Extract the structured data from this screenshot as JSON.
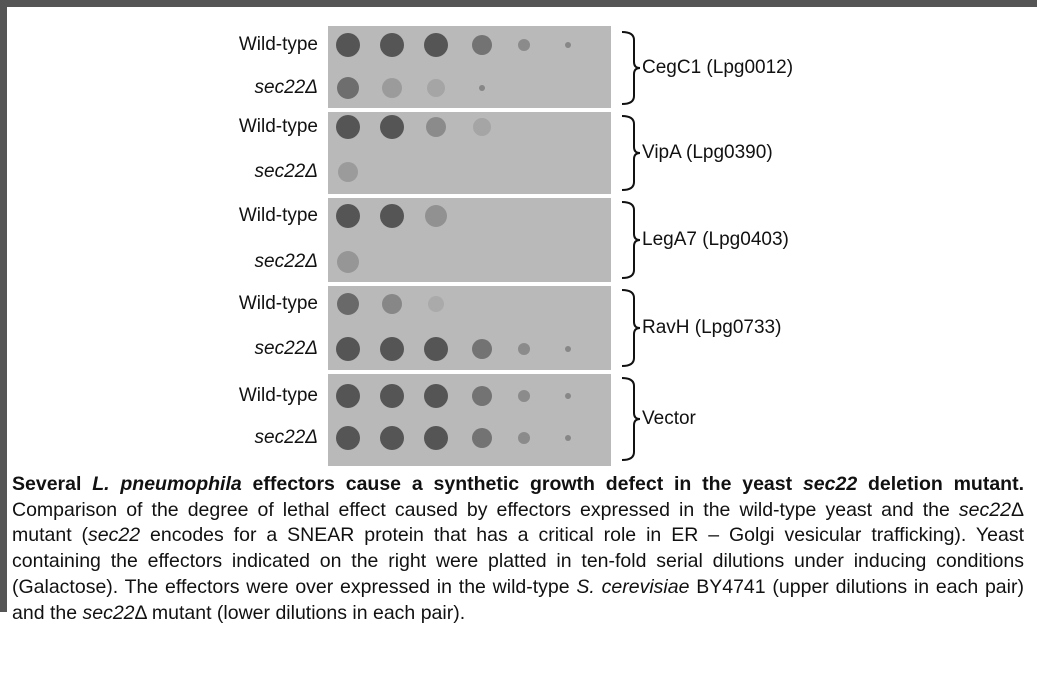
{
  "figure": {
    "panels": [
      {
        "label": "CegC1 (Lpg0012)",
        "rows": [
          "Wild-type",
          "sec22Δ"
        ]
      },
      {
        "label": "VipA (Lpg0390)",
        "rows": [
          "Wild-type",
          "sec22Δ"
        ]
      },
      {
        "label": "LegA7 (Lpg0403)",
        "rows": [
          "Wild-type",
          "sec22Δ"
        ]
      },
      {
        "label": "RavH (Lpg0733)",
        "rows": [
          "Wild-type",
          "sec22Δ"
        ]
      },
      {
        "label": "Vector",
        "rows": [
          "Wild-type",
          "sec22Δ"
        ]
      }
    ]
  },
  "caption": {
    "runs": [
      "Several ",
      "L. pneumophila",
      " effectors cause a synthetic growth defect in the yeast ",
      "sec22",
      " deletion mutant.",
      " Comparison of the degree of lethal effect caused by effectors expressed in the wild-type yeast and the ",
      "sec22",
      "Δ mutant (",
      "sec22",
      " encodes for a SNEAR protein that has a critical role in ER – Golgi vesicular trafficking). Yeast containing the effectors indicated on the right were platted in ten-fold serial dilutions under inducing conditions (Galactose). The effectors were over expressed in the wild-type ",
      "S. cerevisiae",
      " BY4741 (upper dilutions in each pair) and the ",
      "sec22",
      "Δ mutant (lower dilutions in each pair)."
    ]
  }
}
